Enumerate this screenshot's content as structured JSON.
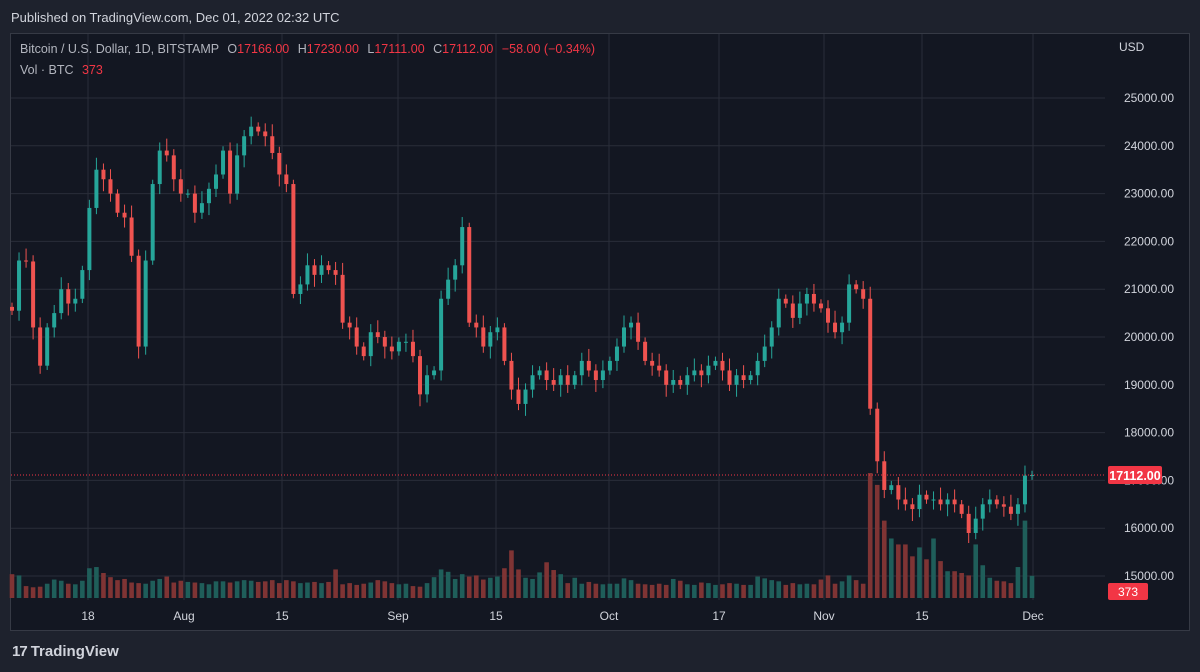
{
  "header": {
    "published": "Published on TradingView.com, Dec 01, 2022 02:32 UTC"
  },
  "legend": {
    "symbol": "Bitcoin / U.S. Dollar, 1D, BITSTAMP",
    "o_label": "O",
    "o": "17166.00",
    "h_label": "H",
    "h": "17230.00",
    "l_label": "L",
    "l": "17111.00",
    "c_label": "C",
    "c": "17112.00",
    "change": "−58.00 (−0.34%)",
    "vol_label": "Vol · BTC",
    "vol": "373"
  },
  "footer": {
    "logo_mark": "17",
    "brand": "TradingView"
  },
  "colors": {
    "up": "#26a69a",
    "down": "#ef5350",
    "up_vol": "#1f5e5a",
    "down_vol": "#7f3434",
    "grid": "#2a2e39",
    "bg": "#131722"
  },
  "chart_data": {
    "type": "candlestick",
    "ylabel": "USD",
    "ylim": [
      14500,
      25800
    ],
    "y_ticks": [
      "25000.00",
      "24000.00",
      "23000.00",
      "22000.00",
      "21000.00",
      "20000.00",
      "19000.00",
      "18000.00",
      "17000.00",
      "16000.00",
      "15000.00"
    ],
    "x_ticks": [
      "18",
      "Aug",
      "15",
      "Sep",
      "15",
      "Oct",
      "17",
      "Nov",
      "15",
      "Dec"
    ],
    "last_price": "17112.00",
    "last_volume": "373",
    "grid": true,
    "close": [
      20550,
      21600,
      21580,
      20200,
      19400,
      20200,
      20500,
      21000,
      20700,
      20800,
      21400,
      22700,
      23500,
      23300,
      23000,
      22600,
      22500,
      21700,
      19800,
      21600,
      23200,
      23900,
      23800,
      23300,
      23000,
      23000,
      22600,
      22800,
      23100,
      23400,
      23900,
      23000,
      23800,
      24200,
      24400,
      24300,
      24200,
      23850,
      23400,
      23200,
      20900,
      21100,
      21500,
      21300,
      21500,
      21400,
      21300,
      20300,
      20200,
      19800,
      19600,
      20100,
      20000,
      19800,
      19700,
      19900,
      19900,
      19600,
      18800,
      19200,
      19300,
      20800,
      21200,
      21500,
      22300,
      20300,
      20200,
      19800,
      20100,
      20200,
      19500,
      18900,
      18600,
      18900,
      19200,
      19300,
      19100,
      19000,
      19200,
      19000,
      19200,
      19500,
      19300,
      19100,
      19300,
      19500,
      19800,
      20200,
      20300,
      19900,
      19500,
      19400,
      19300,
      19000,
      19100,
      19000,
      19200,
      19300,
      19200,
      19400,
      19500,
      19300,
      19000,
      19200,
      19100,
      19200,
      19500,
      19800,
      20200,
      20800,
      20700,
      20400,
      20700,
      20900,
      20700,
      20600,
      20300,
      20100,
      20300,
      21100,
      21000,
      20800,
      18500,
      17400,
      16800,
      16900,
      16600,
      16500,
      16400,
      16700,
      16600,
      16600,
      16500,
      16600,
      16500,
      16300,
      15900,
      16200,
      16500,
      16600,
      16500,
      16450,
      16300,
      16500,
      17100,
      17112
    ],
    "volume": [
      400,
      380,
      200,
      180,
      190,
      240,
      310,
      290,
      240,
      230,
      290,
      500,
      520,
      420,
      350,
      300,
      320,
      260,
      250,
      240,
      290,
      320,
      360,
      260,
      290,
      270,
      260,
      250,
      230,
      280,
      280,
      260,
      280,
      300,
      290,
      270,
      280,
      300,
      250,
      300,
      280,
      250,
      260,
      270,
      250,
      270,
      480,
      230,
      250,
      220,
      240,
      260,
      300,
      280,
      250,
      230,
      240,
      200,
      190,
      250,
      350,
      480,
      440,
      320,
      400,
      360,
      380,
      310,
      340,
      360,
      500,
      800,
      480,
      340,
      320,
      430,
      600,
      470,
      400,
      250,
      340,
      240,
      270,
      240,
      230,
      240,
      240,
      330,
      300,
      240,
      230,
      220,
      240,
      220,
      320,
      290,
      230,
      220,
      260,
      250,
      220,
      230,
      250,
      240,
      220,
      220,
      360,
      330,
      300,
      280,
      220,
      250,
      230,
      240,
      230,
      310,
      380,
      240,
      280,
      380,
      300,
      240,
      2100,
      1900,
      1300,
      1000,
      900,
      900,
      700,
      850,
      650,
      1000,
      620,
      450,
      450,
      420,
      380,
      900,
      550,
      340,
      290,
      280,
      250,
      520,
      1300,
      373
    ]
  }
}
